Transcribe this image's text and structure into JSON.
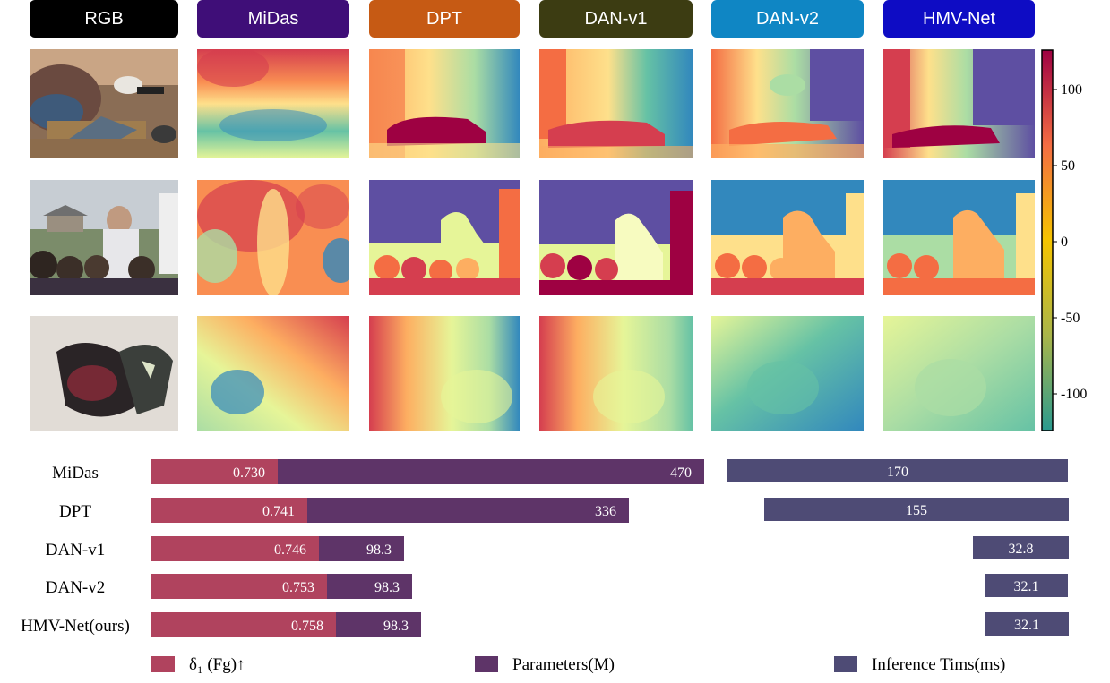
{
  "columns": [
    {
      "key": "rgb",
      "label": "RGB",
      "color": "#000000"
    },
    {
      "key": "midas",
      "label": "MiDas",
      "color": "#3f0e78"
    },
    {
      "key": "dpt",
      "label": "DPT",
      "color": "#c65a14"
    },
    {
      "key": "danv1",
      "label": "DAN-v1",
      "color": "#3c3c12"
    },
    {
      "key": "danv2",
      "label": "DAN-v2",
      "color": "#0f86c4"
    },
    {
      "key": "hmv",
      "label": "HMV-Net",
      "color": "#0e0cc4"
    }
  ],
  "colorbar": {
    "ticks": [
      "100",
      "50",
      "0",
      "-50",
      "-100"
    ],
    "colormap": "Spectral"
  },
  "chart_data": {
    "type": "bar",
    "categories": [
      "MiDas",
      "DPT",
      "DAN-v1",
      "DAN-v2",
      "HMV-Net(ours)"
    ],
    "series": [
      {
        "name": "δ₁ (Fg)↑",
        "values": [
          0.73,
          0.741,
          0.746,
          0.753,
          0.758
        ],
        "labels": [
          "0.730",
          "0.741",
          "0.746",
          "0.753",
          "0.758"
        ],
        "color": "#b0435e"
      },
      {
        "name": "Parameters(M)",
        "values": [
          470,
          336,
          98.3,
          98.3,
          98.3
        ],
        "labels": [
          "470",
          "336",
          "98.3",
          "98.3",
          "98.3"
        ],
        "color": "#5e3468"
      },
      {
        "name": "Inference Tims(ms)",
        "values": [
          170,
          155,
          32.8,
          32.1,
          32.1
        ],
        "labels": [
          "170",
          "155",
          "32.8",
          "32.1",
          "32.1"
        ],
        "color": "#4e4b75"
      }
    ],
    "grid": false,
    "legend": "bottom"
  }
}
